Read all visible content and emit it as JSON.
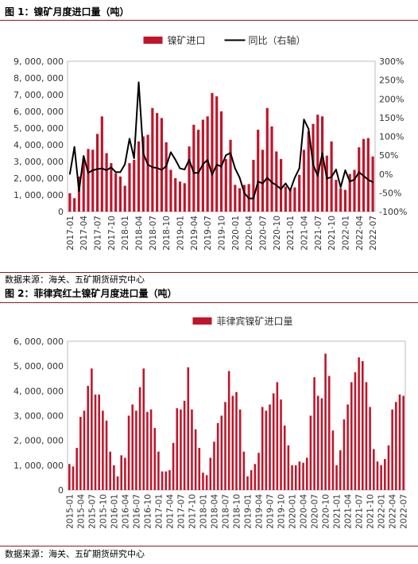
{
  "figure1": {
    "title": "图 1：镍矿月度进口量（吨）",
    "source": "数据来源：海关、五矿期货研究中心"
  },
  "figure2": {
    "title": "图 2：菲律宾红土镍矿月度进口量（吨）",
    "source": "数据来源：海关、五矿期货研究中心"
  },
  "colors": {
    "bar": "#c0152a",
    "line": "#000000",
    "rule": "#8c1c22"
  },
  "chart_data": [
    {
      "type": "bar+line",
      "title": "",
      "legend_position": "top",
      "categories": [
        "2017-01",
        "2017-02",
        "2017-03",
        "2017-04",
        "2017-05",
        "2017-06",
        "2017-07",
        "2017-08",
        "2017-09",
        "2017-10",
        "2017-11",
        "2017-12",
        "2018-01",
        "2018-02",
        "2018-03",
        "2018-04",
        "2018-05",
        "2018-06",
        "2018-07",
        "2018-08",
        "2018-09",
        "2018-10",
        "2018-11",
        "2018-12",
        "2019-01",
        "2019-02",
        "2019-03",
        "2019-04",
        "2019-05",
        "2019-06",
        "2019-07",
        "2019-08",
        "2019-09",
        "2019-10",
        "2019-11",
        "2019-12",
        "2020-01",
        "2020-02",
        "2020-03",
        "2020-04",
        "2020-05",
        "2020-06",
        "2020-07",
        "2020-08",
        "2020-09",
        "2020-10",
        "2020-11",
        "2020-12",
        "2021-01",
        "2021-02",
        "2021-03",
        "2021-04",
        "2021-05",
        "2021-06",
        "2021-07",
        "2021-08",
        "2021-09",
        "2021-10",
        "2021-11",
        "2021-12",
        "2022-01",
        "2022-02",
        "2022-03",
        "2022-04",
        "2022-05",
        "2022-06",
        "2022-07"
      ],
      "tick_labels": [
        "2017-01",
        "2017-04",
        "2017-07",
        "2017-10",
        "2018-01",
        "2018-04",
        "2018-07",
        "2018-10",
        "2019-01",
        "2019-04",
        "2019-07",
        "2019-10",
        "2020-01",
        "2020-04",
        "2020-07",
        "2020-10",
        "2021-01",
        "2021-04",
        "2021-07",
        "2021-10",
        "2022-01",
        "2022-04",
        "2022-07"
      ],
      "series": [
        {
          "name": "镍矿进口",
          "kind": "bar",
          "axis": "left",
          "values": [
            1100000,
            800000,
            2100000,
            3200000,
            3750000,
            3700000,
            4650000,
            5700000,
            3500000,
            2900000,
            2300000,
            2100000,
            1550000,
            2900000,
            3100000,
            4200000,
            4500000,
            4600000,
            6200000,
            5900000,
            5600000,
            4150000,
            2500000,
            2000000,
            1800000,
            1700000,
            3900000,
            5200000,
            4900000,
            5500000,
            5700000,
            7100000,
            6900000,
            6000000,
            3150000,
            4300000,
            1600000,
            1400000,
            1600000,
            1650000,
            3100000,
            4900000,
            3700000,
            6200000,
            5100000,
            3600000,
            3150000,
            1500000,
            1400000,
            1450000,
            2200000,
            3700000,
            4800000,
            5250000,
            5800000,
            5700000,
            3350000,
            4200000,
            1900000,
            1400000,
            1300000,
            2250000,
            2500000,
            3850000,
            4350000,
            4400000,
            3300000
          ]
        },
        {
          "name": "同比（右轴）",
          "kind": "line",
          "axis": "right",
          "values": [
            0,
            72,
            -45,
            48,
            3,
            10,
            13,
            15,
            10,
            18,
            5,
            5,
            26,
            94,
            42,
            244,
            55,
            25,
            18,
            16,
            11,
            21,
            58,
            38,
            15,
            12,
            38,
            3,
            3,
            26,
            38,
            -2,
            25,
            20,
            50,
            56,
            15,
            -10,
            -50,
            -65,
            -65,
            -20,
            -25,
            -10,
            -22,
            -30,
            -40,
            -25,
            -44,
            -10,
            15,
            145,
            120,
            25,
            -5,
            55,
            -12,
            -8,
            12,
            -35,
            10,
            -20,
            -15,
            5,
            -5,
            -15,
            -22
          ]
        }
      ],
      "y_left": {
        "min": 0,
        "max": 9000000,
        "ticks": [
          "0",
          "1, 000, 000",
          "2, 000, 000",
          "3, 000, 000",
          "4, 000, 000",
          "5, 000, 000",
          "6, 000, 000",
          "7, 000, 000",
          "8, 000, 000",
          "9, 000, 000"
        ]
      },
      "y_right": {
        "min": -100,
        "max": 300,
        "ticks": [
          "-100%",
          "-50%",
          "0%",
          "50%",
          "100%",
          "150%",
          "200%",
          "250%",
          "300%"
        ]
      }
    },
    {
      "type": "bar",
      "title": "",
      "legend_position": "top",
      "categories": [
        "2015-01",
        "2015-02",
        "2015-03",
        "2015-04",
        "2015-05",
        "2015-06",
        "2015-07",
        "2015-08",
        "2015-09",
        "2015-10",
        "2015-11",
        "2015-12",
        "2016-01",
        "2016-02",
        "2016-03",
        "2016-04",
        "2016-05",
        "2016-06",
        "2016-07",
        "2016-08",
        "2016-09",
        "2016-10",
        "2016-11",
        "2016-12",
        "2017-01",
        "2017-02",
        "2017-03",
        "2017-04",
        "2017-05",
        "2017-06",
        "2017-07",
        "2017-08",
        "2017-09",
        "2017-10",
        "2017-11",
        "2017-12",
        "2018-01",
        "2018-02",
        "2018-03",
        "2018-04",
        "2018-05",
        "2018-06",
        "2018-07",
        "2018-08",
        "2018-09",
        "2018-10",
        "2018-11",
        "2018-12",
        "2019-01",
        "2019-02",
        "2019-03",
        "2019-04",
        "2019-05",
        "2019-06",
        "2019-07",
        "2019-08",
        "2019-09",
        "2019-10",
        "2019-11",
        "2019-12",
        "2020-01",
        "2020-02",
        "2020-03",
        "2020-04",
        "2020-05",
        "2020-06",
        "2020-07",
        "2020-08",
        "2020-09",
        "2020-10",
        "2020-11",
        "2020-12",
        "2021-01",
        "2021-02",
        "2021-03",
        "2021-04",
        "2021-05",
        "2021-06",
        "2021-07",
        "2021-08",
        "2021-09",
        "2021-10",
        "2021-11",
        "2021-12",
        "2022-01",
        "2022-02",
        "2022-03",
        "2022-04",
        "2022-05",
        "2022-06",
        "2022-07"
      ],
      "tick_labels": [
        "2015-01",
        "2015-04",
        "2015-07",
        "2015-10",
        "2016-01",
        "2016-04",
        "2016-07",
        "2016-10",
        "2017-01",
        "2017-04",
        "2017-07",
        "2017-10",
        "2018-01",
        "2018-04",
        "2018-07",
        "2018-10",
        "2019-01",
        "2019-04",
        "2019-07",
        "2019-10",
        "2020-01",
        "2020-04",
        "2020-07",
        "2020-10",
        "2021-01",
        "2021-04",
        "2021-07",
        "2021-10",
        "2022-01",
        "2022-04",
        "2022-07"
      ],
      "series": [
        {
          "name": "菲律宾镍矿进口量",
          "kind": "bar",
          "axis": "left",
          "values": [
            1050000,
            950000,
            1700000,
            2950000,
            3200000,
            4200000,
            4900000,
            3850000,
            3850000,
            3200000,
            2800000,
            1550000,
            1000000,
            550000,
            1400000,
            1300000,
            3000000,
            3450000,
            3200000,
            4150000,
            4900000,
            3150000,
            3250000,
            2500000,
            1550000,
            750000,
            750000,
            800000,
            1900000,
            3300000,
            3250000,
            3600000,
            4950000,
            3250000,
            2450000,
            1700000,
            700000,
            600000,
            1300000,
            1950000,
            2700000,
            3000000,
            3550000,
            4800000,
            3800000,
            3950000,
            3250000,
            1550000,
            550000,
            800000,
            1050000,
            1500000,
            3350000,
            3200000,
            3450000,
            3900000,
            4350000,
            3650000,
            2600000,
            1800000,
            1000000,
            1000000,
            1150000,
            1100000,
            1300000,
            3000000,
            4550000,
            3800000,
            3700000,
            5500000,
            4600000,
            2400000,
            1000000,
            1600000,
            2850000,
            3450000,
            4350000,
            4750000,
            5350000,
            5200000,
            4350000,
            3350000,
            1650000,
            1150000,
            1000000,
            1250000,
            1800000,
            3250000,
            3550000,
            3850000,
            3800000
          ]
        }
      ],
      "y_left": {
        "min": 0,
        "max": 6000000,
        "ticks": [
          "0",
          "1, 000, 000",
          "2, 000, 000",
          "3, 000, 000",
          "4, 000, 000",
          "5, 000, 000",
          "6, 000, 000"
        ]
      }
    }
  ]
}
